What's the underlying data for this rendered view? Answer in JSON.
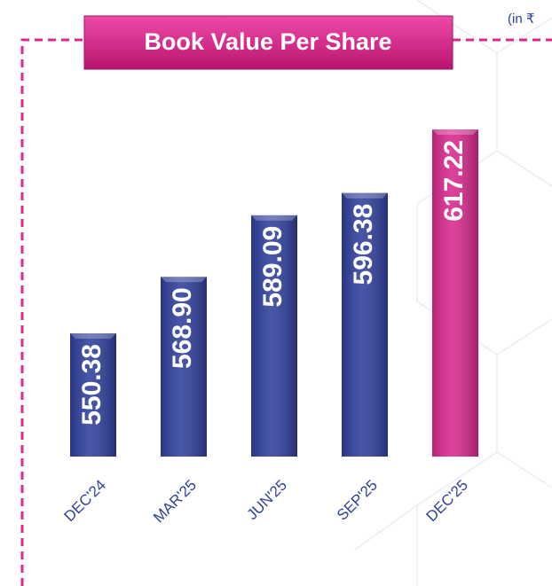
{
  "chart_data": {
    "type": "bar",
    "title": "Book Value Per Share",
    "unit_note": "(in ₹",
    "categories": [
      "DEC'24",
      "MAR'25",
      "JUN'25",
      "SEP'25",
      "DEC'25"
    ],
    "values": [
      550.38,
      568.9,
      589.09,
      596.38,
      617.22
    ],
    "value_labels": [
      "550.38",
      "568.90",
      "589.09",
      "596.38",
      "617.22"
    ],
    "colors": [
      "#2f3f9c",
      "#2f3f9c",
      "#2f3f9c",
      "#2f3f9c",
      "#d9288e"
    ],
    "ylim": [
      510,
      630
    ]
  }
}
